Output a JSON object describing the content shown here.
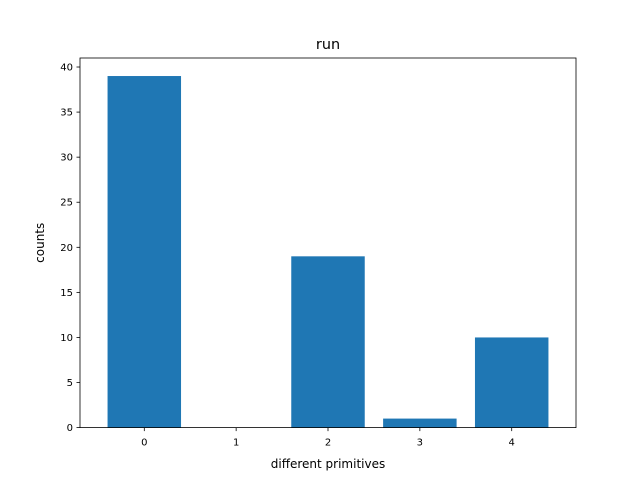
{
  "chart_data": {
    "type": "bar",
    "title": "run",
    "xlabel": "different primitives",
    "ylabel": "counts",
    "categories": [
      "0",
      "1",
      "2",
      "3",
      "4"
    ],
    "values": [
      39,
      0,
      19,
      1,
      10
    ],
    "ylim": [
      0,
      41
    ],
    "yticks": [
      "0",
      "5",
      "10",
      "15",
      "20",
      "25",
      "30",
      "35",
      "40"
    ],
    "bar_color": "#1f77b4",
    "grid": false,
    "legend": "none"
  }
}
